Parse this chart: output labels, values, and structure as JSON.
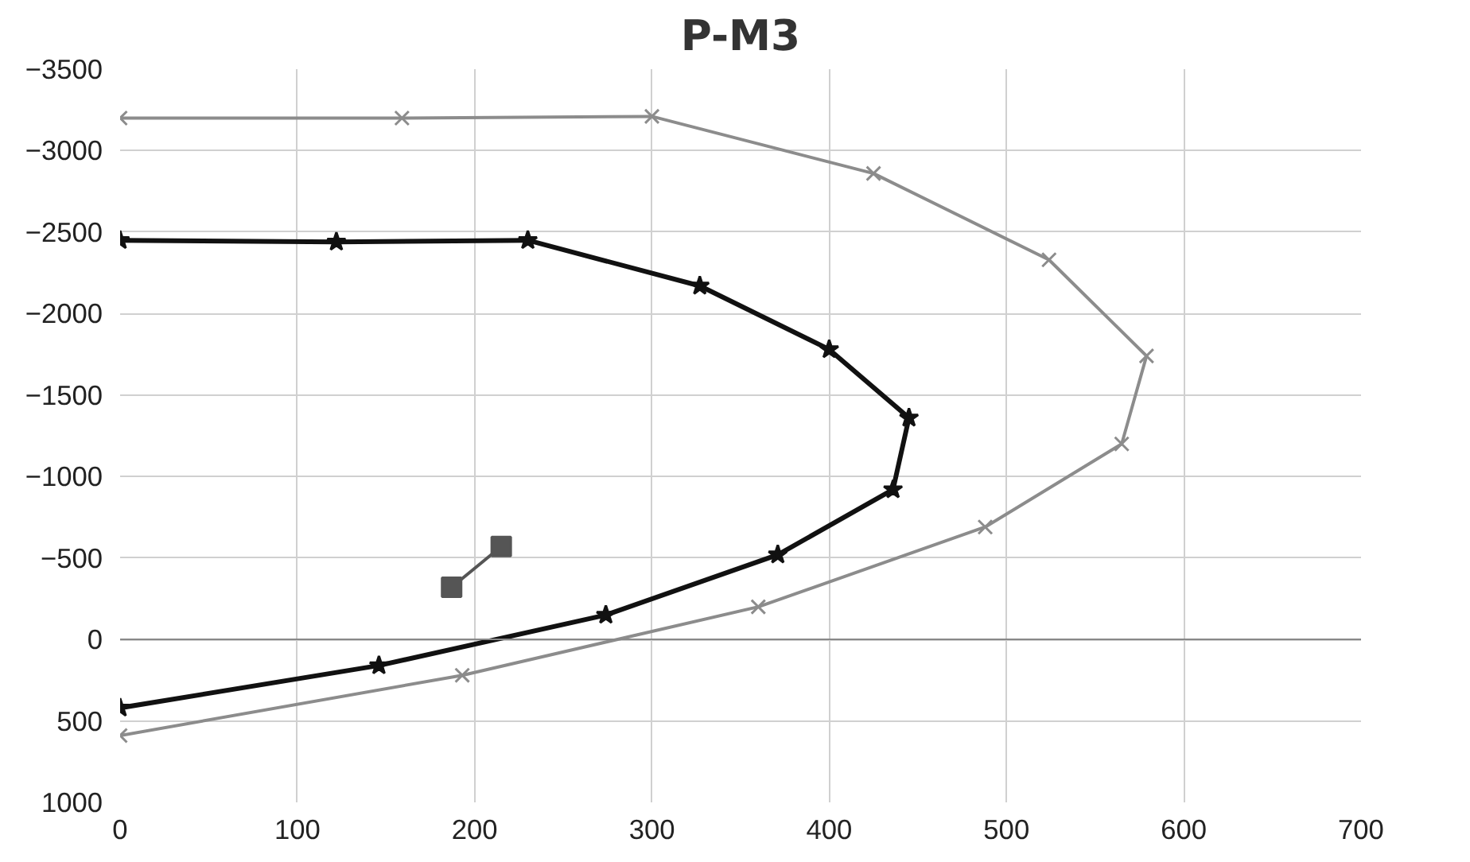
{
  "chart_data": {
    "type": "line",
    "title": "P-M3",
    "xlim": [
      0,
      700
    ],
    "xticks": [
      0,
      100,
      200,
      300,
      400,
      500,
      600,
      700
    ],
    "ylim": [
      1000,
      -3500
    ],
    "yticks": [
      -3500,
      -3000,
      -2500,
      -2000,
      -1500,
      -1000,
      -500,
      0,
      500,
      1000
    ],
    "grid": true,
    "series": [
      {
        "color": "#8c8c8c",
        "marker": "cross",
        "x": [
          0,
          159,
          300,
          425,
          524,
          579,
          565,
          488,
          360,
          193,
          0
        ],
        "values": [
          -3200,
          -3200,
          -3210,
          -2860,
          -2330,
          -1740,
          -1200,
          -690,
          -200,
          220,
          590
        ]
      },
      {
        "color": "#111111",
        "marker": "star",
        "x": [
          0,
          122,
          230,
          327,
          400,
          445,
          436,
          371,
          274,
          146,
          0
        ],
        "values": [
          -2450,
          -2440,
          -2450,
          -2170,
          -1780,
          -1360,
          -920,
          -520,
          -150,
          160,
          420
        ]
      },
      {
        "color": "#555555",
        "marker": "square",
        "x": [
          187,
          215
        ],
        "values": [
          -320,
          -570
        ]
      }
    ]
  }
}
